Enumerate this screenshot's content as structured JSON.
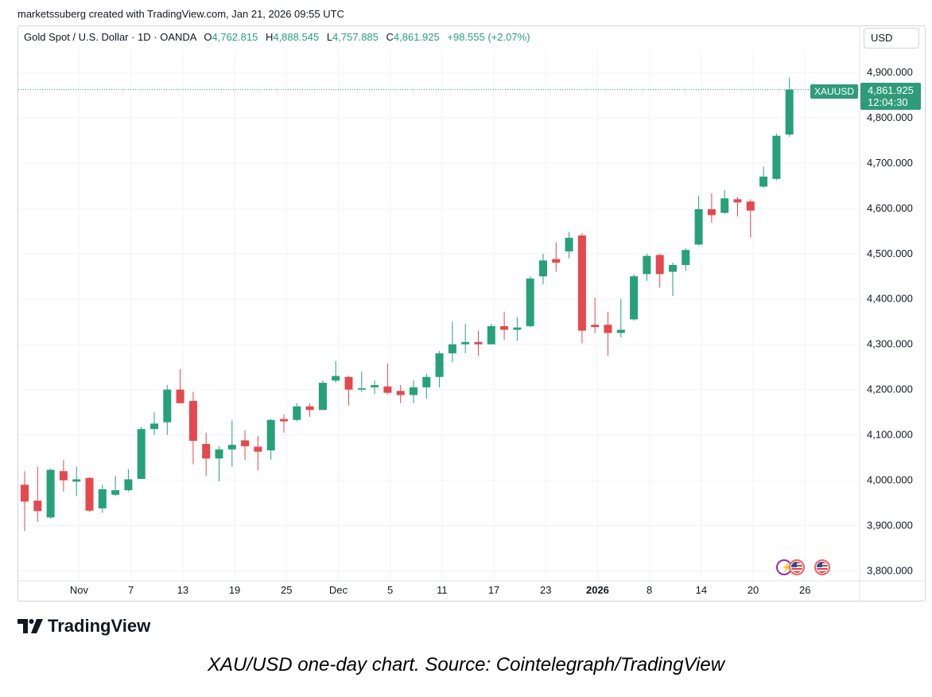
{
  "header": {
    "credit": "marketssuberg created with TradingView.com, Jan 21, 2026 09:55 UTC"
  },
  "legend": {
    "symbol": "Gold Spot / U.S. Dollar · 1D · OANDA",
    "o_label": "O",
    "o": "4,762.815",
    "h_label": "H",
    "h": "4,888.545",
    "l_label": "L",
    "l": "4,757.885",
    "c_label": "C",
    "c": "4,861.925",
    "change": "+98.555 (+2.07%)"
  },
  "currency_button": "USD",
  "last_price": {
    "symbol": "XAUUSD",
    "price": "4,861.925",
    "countdown": "12:04:30",
    "value": 4861.925
  },
  "events": [
    "lightning-event-icon",
    "us-flag-icon",
    "us-flag-icon"
  ],
  "brand": {
    "name": "TradingView"
  },
  "caption": "XAU/USD one-day chart. Source: Cointelegraph/TradingView",
  "colors": {
    "up": "#26a17a",
    "down": "#e5484d",
    "grid": "#f0f3fa",
    "accent": "#2e9b7a"
  },
  "chart_data": {
    "type": "candlestick",
    "title": "Gold Spot / U.S. Dollar · 1D · OANDA",
    "ylim": [
      3770,
      4930
    ],
    "grid": true,
    "y_ticks": [
      3800,
      3900,
      4000,
      4100,
      4200,
      4300,
      4400,
      4500,
      4600,
      4700,
      4800,
      4900
    ],
    "y_tick_labels": [
      "3,800.000",
      "3,900.000",
      "4,000.000",
      "4,100.000",
      "4,200.000",
      "4,300.000",
      "4,400.000",
      "4,500.000",
      "4,600.000",
      "4,700.000",
      "4,800.000",
      "4,900.000"
    ],
    "x_tick_labels": [
      {
        "label": "Nov",
        "bar": 4.2,
        "bold": false
      },
      {
        "label": "7",
        "bar": 8.2,
        "bold": false
      },
      {
        "label": "13",
        "bar": 12.2,
        "bold": false
      },
      {
        "label": "19",
        "bar": 16.2,
        "bold": false
      },
      {
        "label": "25",
        "bar": 20.2,
        "bold": false
      },
      {
        "label": "Dec",
        "bar": 24.2,
        "bold": false
      },
      {
        "label": "5",
        "bar": 28.2,
        "bold": false
      },
      {
        "label": "11",
        "bar": 32.2,
        "bold": false
      },
      {
        "label": "17",
        "bar": 36.2,
        "bold": false
      },
      {
        "label": "23",
        "bar": 40.2,
        "bold": false
      },
      {
        "label": "2026",
        "bar": 44.2,
        "bold": true
      },
      {
        "label": "8",
        "bar": 48.2,
        "bold": false
      },
      {
        "label": "14",
        "bar": 52.2,
        "bold": false
      },
      {
        "label": "20",
        "bar": 56.2,
        "bold": false
      },
      {
        "label": "26",
        "bar": 60.2,
        "bold": false
      }
    ],
    "candles": [
      {
        "o": 3990,
        "h": 4020,
        "l": 3888,
        "c": 3953
      },
      {
        "o": 3955,
        "h": 4030,
        "l": 3908,
        "c": 3932
      },
      {
        "o": 3918,
        "h": 4025,
        "l": 3915,
        "c": 4023
      },
      {
        "o": 4020,
        "h": 4045,
        "l": 3975,
        "c": 4000
      },
      {
        "o": 3997,
        "h": 4030,
        "l": 3965,
        "c": 4002
      },
      {
        "o": 4005,
        "h": 4007,
        "l": 3930,
        "c": 3933
      },
      {
        "o": 3938,
        "h": 3990,
        "l": 3928,
        "c": 3980
      },
      {
        "o": 3968,
        "h": 4010,
        "l": 3965,
        "c": 3978
      },
      {
        "o": 3978,
        "h": 4025,
        "l": 3975,
        "c": 4002
      },
      {
        "o": 4003,
        "h": 4118,
        "l": 4003,
        "c": 4113
      },
      {
        "o": 4113,
        "h": 4150,
        "l": 4100,
        "c": 4125
      },
      {
        "o": 4128,
        "h": 4210,
        "l": 4100,
        "c": 4200
      },
      {
        "o": 4200,
        "h": 4245,
        "l": 4170,
        "c": 4170
      },
      {
        "o": 4175,
        "h": 4195,
        "l": 4035,
        "c": 4087
      },
      {
        "o": 4080,
        "h": 4105,
        "l": 4010,
        "c": 4048
      },
      {
        "o": 4048,
        "h": 4075,
        "l": 3998,
        "c": 4068
      },
      {
        "o": 4068,
        "h": 4132,
        "l": 4030,
        "c": 4078
      },
      {
        "o": 4088,
        "h": 4110,
        "l": 4045,
        "c": 4075
      },
      {
        "o": 4074,
        "h": 4098,
        "l": 4022,
        "c": 4063
      },
      {
        "o": 4066,
        "h": 4135,
        "l": 4045,
        "c": 4133
      },
      {
        "o": 4135,
        "h": 4145,
        "l": 4105,
        "c": 4130
      },
      {
        "o": 4133,
        "h": 4170,
        "l": 4130,
        "c": 4163
      },
      {
        "o": 4163,
        "h": 4170,
        "l": 4140,
        "c": 4155
      },
      {
        "o": 4155,
        "h": 4220,
        "l": 4155,
        "c": 4215
      },
      {
        "o": 4220,
        "h": 4263,
        "l": 4215,
        "c": 4230
      },
      {
        "o": 4228,
        "h": 4230,
        "l": 4165,
        "c": 4200
      },
      {
        "o": 4200,
        "h": 4240,
        "l": 4195,
        "c": 4203
      },
      {
        "o": 4205,
        "h": 4220,
        "l": 4190,
        "c": 4210
      },
      {
        "o": 4207,
        "h": 4258,
        "l": 4190,
        "c": 4193
      },
      {
        "o": 4197,
        "h": 4210,
        "l": 4170,
        "c": 4188
      },
      {
        "o": 4188,
        "h": 4220,
        "l": 4170,
        "c": 4205
      },
      {
        "o": 4205,
        "h": 4235,
        "l": 4180,
        "c": 4228
      },
      {
        "o": 4228,
        "h": 4285,
        "l": 4205,
        "c": 4280
      },
      {
        "o": 4280,
        "h": 4350,
        "l": 4260,
        "c": 4300
      },
      {
        "o": 4300,
        "h": 4345,
        "l": 4280,
        "c": 4305
      },
      {
        "o": 4305,
        "h": 4330,
        "l": 4275,
        "c": 4300
      },
      {
        "o": 4300,
        "h": 4345,
        "l": 4300,
        "c": 4340
      },
      {
        "o": 4340,
        "h": 4372,
        "l": 4310,
        "c": 4332
      },
      {
        "o": 4332,
        "h": 4360,
        "l": 4308,
        "c": 4337
      },
      {
        "o": 4340,
        "h": 4450,
        "l": 4338,
        "c": 4445
      },
      {
        "o": 4450,
        "h": 4500,
        "l": 4432,
        "c": 4485
      },
      {
        "o": 4488,
        "h": 4525,
        "l": 4460,
        "c": 4480
      },
      {
        "o": 4505,
        "h": 4548,
        "l": 4490,
        "c": 4535
      },
      {
        "o": 4540,
        "h": 4545,
        "l": 4302,
        "c": 4330
      },
      {
        "o": 4343,
        "h": 4403,
        "l": 4325,
        "c": 4338
      },
      {
        "o": 4343,
        "h": 4372,
        "l": 4275,
        "c": 4325
      },
      {
        "o": 4325,
        "h": 4400,
        "l": 4315,
        "c": 4332
      },
      {
        "o": 4355,
        "h": 4455,
        "l": 4352,
        "c": 4450
      },
      {
        "o": 4455,
        "h": 4500,
        "l": 4440,
        "c": 4495
      },
      {
        "o": 4497,
        "h": 4500,
        "l": 4425,
        "c": 4455
      },
      {
        "o": 4460,
        "h": 4480,
        "l": 4407,
        "c": 4475
      },
      {
        "o": 4475,
        "h": 4512,
        "l": 4462,
        "c": 4508
      },
      {
        "o": 4520,
        "h": 4628,
        "l": 4518,
        "c": 4598
      },
      {
        "o": 4598,
        "h": 4633,
        "l": 4568,
        "c": 4585
      },
      {
        "o": 4590,
        "h": 4640,
        "l": 4588,
        "c": 4622
      },
      {
        "o": 4620,
        "h": 4625,
        "l": 4582,
        "c": 4613
      },
      {
        "o": 4615,
        "h": 4620,
        "l": 4535,
        "c": 4595
      },
      {
        "o": 4648,
        "h": 4692,
        "l": 4645,
        "c": 4670
      },
      {
        "o": 4665,
        "h": 4765,
        "l": 4662,
        "c": 4760
      },
      {
        "o": 4762.815,
        "h": 4888.545,
        "l": 4757.885,
        "c": 4861.925
      }
    ]
  }
}
